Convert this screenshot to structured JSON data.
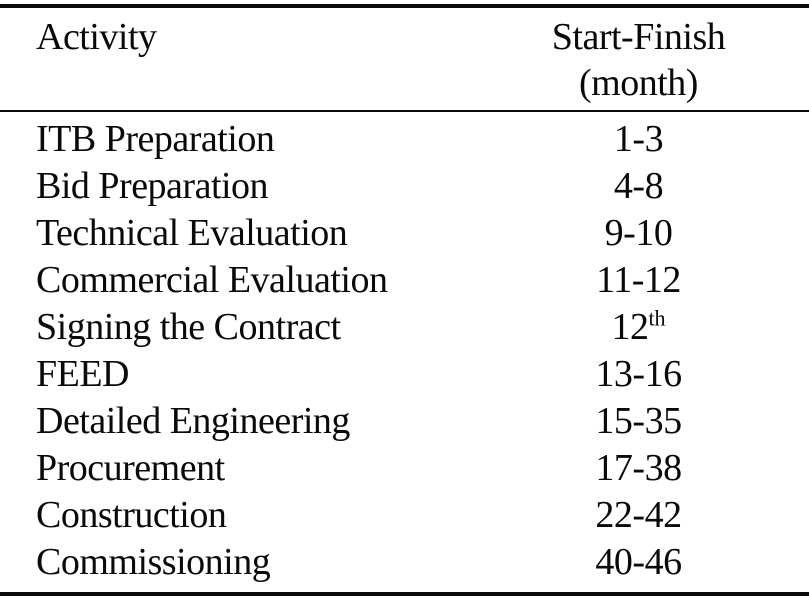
{
  "table": {
    "columns": {
      "activity": "Activity",
      "period_line1": "Start-Finish",
      "period_line2": "(month)"
    },
    "rows": [
      {
        "activity": "ITB Preparation",
        "period": "1-3",
        "period_sup": ""
      },
      {
        "activity": "Bid Preparation",
        "period": "4-8",
        "period_sup": ""
      },
      {
        "activity": "Technical Evaluation",
        "period": "9-10",
        "period_sup": ""
      },
      {
        "activity": "Commercial Evaluation",
        "period": "11-12",
        "period_sup": ""
      },
      {
        "activity": "Signing the Contract",
        "period": "12",
        "period_sup": "th"
      },
      {
        "activity": "FEED",
        "period": "13-16",
        "period_sup": ""
      },
      {
        "activity": "Detailed Engineering",
        "period": "15-35",
        "period_sup": ""
      },
      {
        "activity": "Procurement",
        "period": "17-38",
        "period_sup": ""
      },
      {
        "activity": "Construction",
        "period": "22-42",
        "period_sup": ""
      },
      {
        "activity": "Commissioning",
        "period": "40-46",
        "period_sup": ""
      }
    ],
    "colors": {
      "text": "#0a0a0a",
      "background": "#ffffff",
      "border": "#0a0a0a"
    }
  }
}
